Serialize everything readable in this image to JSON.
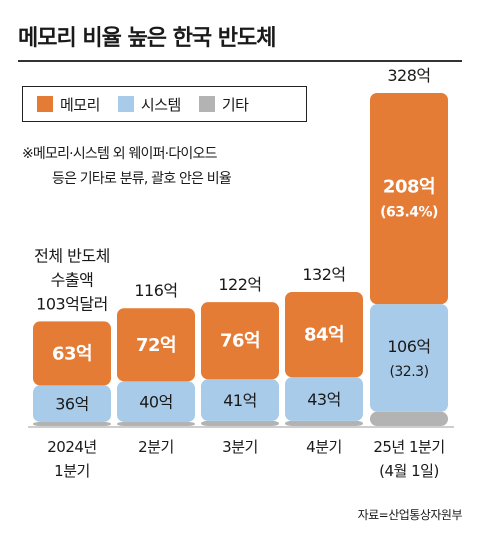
{
  "title": "메모리 비율 높은 한국 반도체",
  "legend": [
    {
      "label": "메모리",
      "color": "#e57c35",
      "icon": "square-swatch"
    },
    {
      "label": "시스템",
      "color": "#a8cbe9",
      "icon": "square-swatch"
    },
    {
      "label": "기타",
      "color": "#b3b3b3",
      "icon": "square-swatch"
    }
  ],
  "note": {
    "line1": "※메모리·시스템 외 웨이퍼·다이오드",
    "line2": "등은 기타로 분류, 괄호 안은 비율"
  },
  "source": "자료=산업통상자원부",
  "chart_data": {
    "type": "bar",
    "stacked": true,
    "unit": "억",
    "categories": [
      [
        "2024년",
        "1분기"
      ],
      [
        "2분기"
      ],
      [
        "3분기"
      ],
      [
        "4분기"
      ],
      [
        "25년 1분기",
        "(4월 1일)"
      ]
    ],
    "series": [
      {
        "name": "기타",
        "values": [
          4,
          4,
          5,
          5,
          14
        ],
        "color": "#b3b3b3"
      },
      {
        "name": "시스템",
        "values": [
          36,
          40,
          41,
          43,
          106
        ],
        "color": "#a8cbe9"
      },
      {
        "name": "메모리",
        "values": [
          63,
          72,
          76,
          84,
          208
        ],
        "color": "#e57c35"
      }
    ],
    "segment_labels": {
      "메모리": [
        "63억",
        "72억",
        "76억",
        "84억",
        "208억"
      ],
      "시스템": [
        "36억",
        "40억",
        "41억",
        "43억",
        "106억"
      ]
    },
    "segment_sublabels": {
      "메모리": [
        "",
        "",
        "",
        "",
        "(63.4%)"
      ],
      "시스템": [
        "",
        "",
        "",
        "",
        "(32.3)"
      ]
    },
    "totals": [
      [
        "전체 반도체",
        "수출액",
        "103억달러"
      ],
      [
        "116억"
      ],
      [
        "122억"
      ],
      [
        "132억"
      ],
      [
        "328억"
      ]
    ],
    "ylim": [
      0,
      328
    ]
  }
}
